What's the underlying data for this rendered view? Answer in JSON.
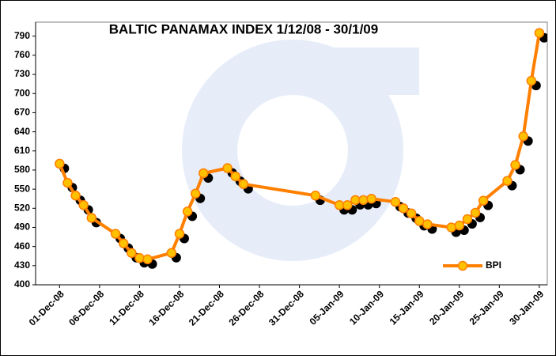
{
  "chart_data": {
    "type": "line",
    "title": "BALTIC PANAMAX INDEX 1/12/08 - 30/1/09",
    "x": [
      "2008-12-01",
      "2008-12-02",
      "2008-12-03",
      "2008-12-04",
      "2008-12-05",
      "2008-12-08",
      "2008-12-09",
      "2008-12-10",
      "2008-12-11",
      "2008-12-12",
      "2008-12-15",
      "2008-12-16",
      "2008-12-17",
      "2008-12-18",
      "2008-12-19",
      "2008-12-22",
      "2008-12-23",
      "2008-12-24",
      "2009-01-02",
      "2009-01-05",
      "2009-01-06",
      "2009-01-07",
      "2009-01-08",
      "2009-01-09",
      "2009-01-12",
      "2009-01-13",
      "2009-01-14",
      "2009-01-15",
      "2009-01-16",
      "2009-01-19",
      "2009-01-20",
      "2009-01-21",
      "2009-01-22",
      "2009-01-23",
      "2009-01-26",
      "2009-01-27",
      "2009-01-28",
      "2009-01-29",
      "2009-01-30"
    ],
    "series": [
      {
        "name": "BPI",
        "color": "#ff7f00",
        "marker_color": "#ffc000",
        "values": [
          590,
          560,
          540,
          525,
          505,
          480,
          465,
          450,
          442,
          440,
          450,
          480,
          515,
          543,
          575,
          583,
          570,
          558,
          540,
          525,
          525,
          533,
          533,
          535,
          530,
          520,
          512,
          500,
          495,
          490,
          493,
          503,
          513,
          532,
          563,
          588,
          633,
          720,
          795
        ]
      }
    ],
    "xlim": [
      "2008-11-28",
      "2009-01-31"
    ],
    "xticks": [
      {
        "value": "2008-12-01",
        "label": "01-Dec-08"
      },
      {
        "value": "2008-12-06",
        "label": "06-Dec-08"
      },
      {
        "value": "2008-12-11",
        "label": "11-Dec-08"
      },
      {
        "value": "2008-12-16",
        "label": "16-Dec-08"
      },
      {
        "value": "2008-12-21",
        "label": "21-Dec-08"
      },
      {
        "value": "2008-12-26",
        "label": "26-Dec-08"
      },
      {
        "value": "2008-12-31",
        "label": "31-Dec-08"
      },
      {
        "value": "2009-01-05",
        "label": "05-Jan-09"
      },
      {
        "value": "2009-01-10",
        "label": "10-Jan-09"
      },
      {
        "value": "2009-01-15",
        "label": "15-Jan-09"
      },
      {
        "value": "2009-01-20",
        "label": "20-Jan-09"
      },
      {
        "value": "2009-01-25",
        "label": "25-Jan-09"
      },
      {
        "value": "2009-01-30",
        "label": "30-Jan-09"
      }
    ],
    "ylim": [
      400,
      812
    ],
    "yticks": [
      400,
      430,
      460,
      490,
      520,
      550,
      580,
      610,
      640,
      670,
      700,
      730,
      760,
      790
    ],
    "legend": "lower right"
  }
}
